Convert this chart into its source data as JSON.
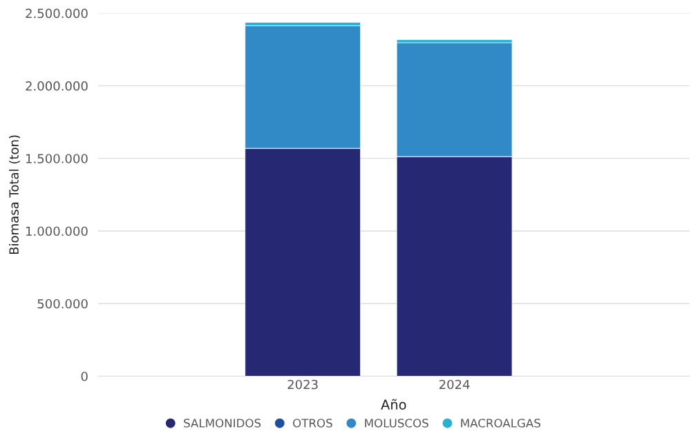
{
  "chart_data": {
    "type": "bar",
    "stacked": true,
    "xlabel": "Año",
    "ylabel": "Biomasa Total (ton)",
    "categories": [
      "2023",
      "2024"
    ],
    "series": [
      {
        "name": "SALMONIDOS",
        "color": "#262873",
        "values": [
          1570000,
          1513000
        ]
      },
      {
        "name": "OTROS",
        "color": "#1f4e9a",
        "values": [
          0,
          0
        ]
      },
      {
        "name": "MOLUSCOS",
        "color": "#318ac5",
        "values": [
          844000,
          784000
        ]
      },
      {
        "name": "MACROALGAS",
        "color": "#25b2d4",
        "values": [
          23000,
          21000
        ]
      }
    ],
    "ylim": [
      0,
      2500000
    ],
    "yticks": [
      0,
      {
        "value": 500000,
        "label": "500.000"
      },
      {
        "value": 1000000,
        "label": "1.000.000"
      },
      {
        "value": 1500000,
        "label": "1.500.000"
      },
      {
        "value": 2000000,
        "label": "2.000.000"
      },
      {
        "value": 2500000,
        "label": "2.500.000"
      }
    ],
    "grid": "y",
    "legend": "bottom"
  }
}
